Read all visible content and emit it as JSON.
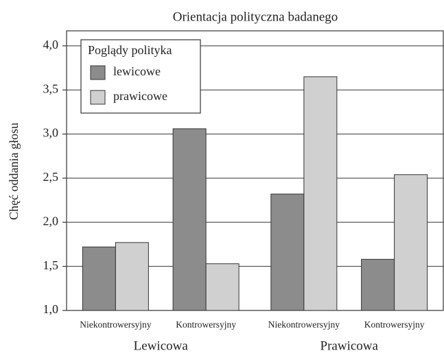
{
  "chart_data": {
    "type": "bar",
    "title": "Orientacja polityczna badanego",
    "y_label": "Chęć oddania głosu",
    "categories": [
      "Niekontrowersyjny",
      "Kontrowersyjny",
      "Niekontrowersyjny",
      "Kontrowersyjny"
    ],
    "groups": [
      "Lewicowa",
      "Prawicowa"
    ],
    "legend_title": "Poglądy polityka",
    "legend": "upper left",
    "grid": true,
    "series": [
      {
        "name": "lewicowe",
        "color": "#8c8c8c",
        "values": [
          1.72,
          3.06,
          2.32,
          1.58
        ]
      },
      {
        "name": "prawicowe",
        "color": "#d0d0d0",
        "values": [
          1.77,
          1.53,
          3.65,
          2.54
        ]
      }
    ],
    "ylim": [
      1,
      4.17
    ],
    "yticks": [
      {
        "value": 1,
        "label": "1,0"
      },
      {
        "value": 1.5,
        "label": "1,5"
      },
      {
        "value": 2,
        "label": "2,0"
      },
      {
        "value": 2.5,
        "label": "2,5"
      },
      {
        "value": 3,
        "label": "3,0"
      },
      {
        "value": 3.5,
        "label": "3,5"
      },
      {
        "value": 4,
        "label": "4,0"
      }
    ]
  }
}
